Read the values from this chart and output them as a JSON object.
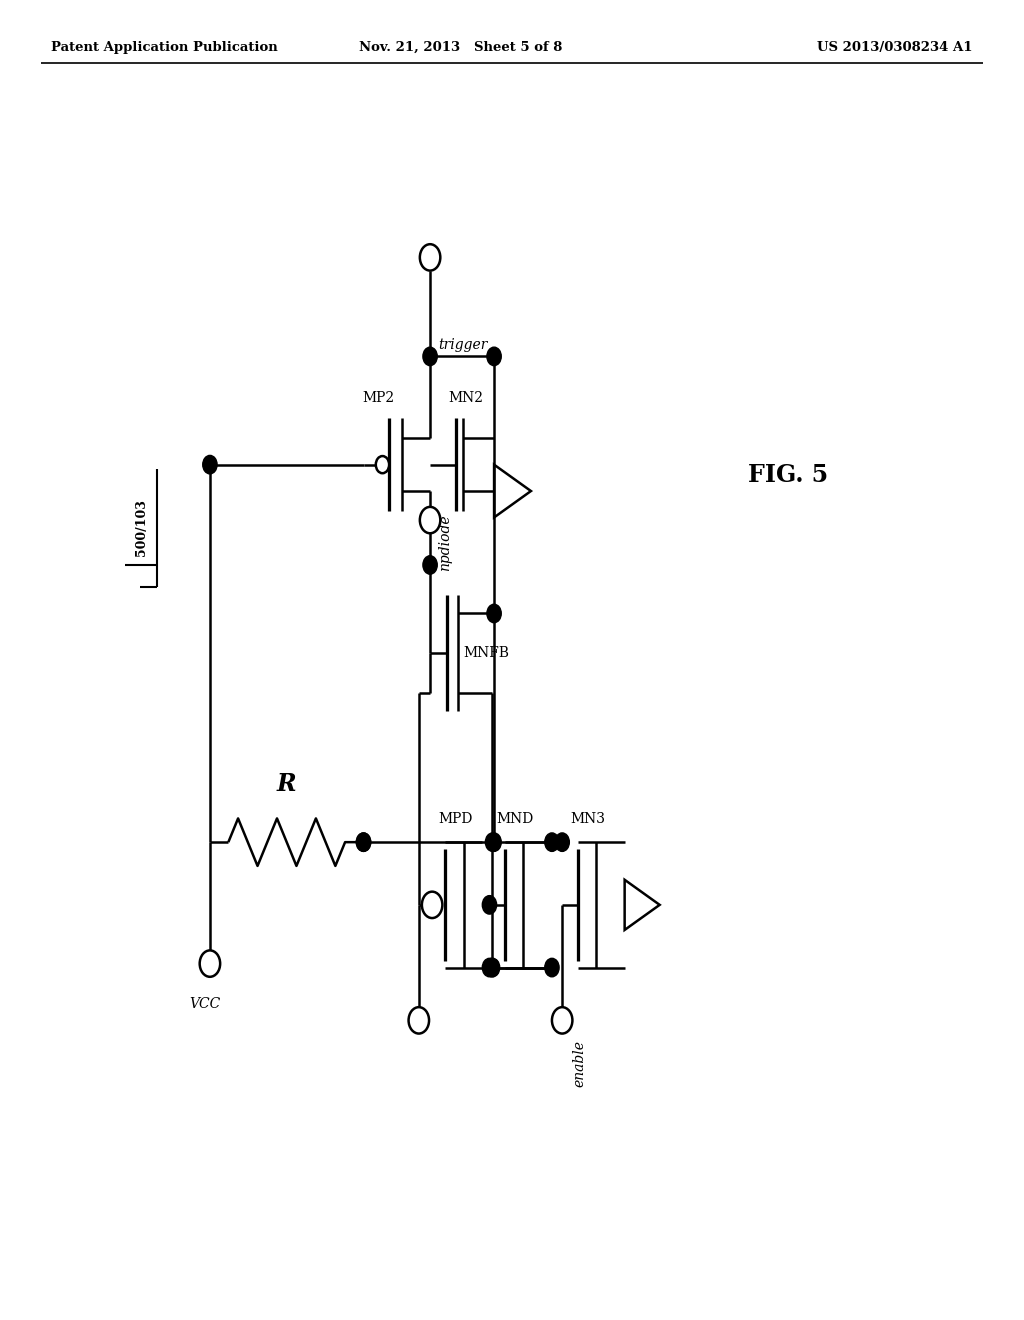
{
  "header_left": "Patent Application Publication",
  "header_center": "Nov. 21, 2013   Sheet 5 of 8",
  "header_right": "US 2013/0308234 A1",
  "fig_label": "FIG. 5",
  "circuit_label": "500/103",
  "bg_color": "#ffffff",
  "line_color": "#000000",
  "lw": 1.8,
  "dot_r": 0.007,
  "oc_r": 0.01
}
